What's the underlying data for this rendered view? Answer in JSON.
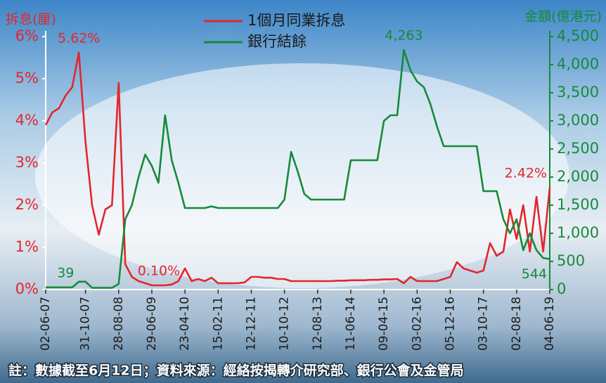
{
  "chart_data": {
    "type": "line",
    "y_label": "拆息(厘)",
    "y2_label": "金額(億港元)",
    "note": "註：數據截至6月12日；資料來源：經絡按揭轉介研究部、銀行公會及金管局",
    "categories": [
      "02-06-07",
      null,
      null,
      null,
      null,
      null,
      "31-10-07",
      null,
      null,
      null,
      null,
      "28-08-08",
      null,
      null,
      null,
      null,
      "29-06-09",
      null,
      null,
      null,
      null,
      "23-04-10",
      null,
      null,
      null,
      null,
      "15-02-11",
      null,
      null,
      null,
      null,
      "12-12-11",
      null,
      null,
      null,
      null,
      "10-10-12",
      null,
      null,
      null,
      null,
      "12-08-13",
      null,
      null,
      null,
      null,
      "11-06-14",
      null,
      null,
      null,
      null,
      "09-04-15",
      null,
      null,
      null,
      null,
      "03-02-16",
      null,
      null,
      null,
      null,
      "05-12-16",
      null,
      null,
      null,
      null,
      "03-10-17",
      null,
      null,
      null,
      null,
      "02-08-18",
      null,
      null,
      null,
      null,
      "04-06-19"
    ],
    "series": [
      {
        "name": "1個月同業拆息",
        "color": "#e3262c",
        "values": [
          3.9,
          4.2,
          4.3,
          4.6,
          4.8,
          5.62,
          3.5,
          2.0,
          1.3,
          1.9,
          2.0,
          4.9,
          0.6,
          0.3,
          0.2,
          0.15,
          0.1,
          0.1,
          0.1,
          0.12,
          0.2,
          0.5,
          0.2,
          0.25,
          0.2,
          0.28,
          0.15,
          0.15,
          0.15,
          0.15,
          0.17,
          0.3,
          0.3,
          0.28,
          0.28,
          0.25,
          0.25,
          0.2,
          0.2,
          0.2,
          0.2,
          0.2,
          0.2,
          0.2,
          0.21,
          0.21,
          0.22,
          0.22,
          0.22,
          0.23,
          0.23,
          0.24,
          0.24,
          0.25,
          0.15,
          0.3,
          0.2,
          0.2,
          0.2,
          0.2,
          0.25,
          0.3,
          0.65,
          0.5,
          0.45,
          0.4,
          0.45,
          1.1,
          0.8,
          0.9,
          1.9,
          1.2,
          2.0,
          0.9,
          2.2,
          0.9,
          2.42
        ],
        "value_labels": [
          null,
          null,
          null,
          null,
          null,
          "5.62%",
          null,
          null,
          null,
          null,
          null,
          null,
          null,
          null,
          null,
          null,
          "0.10%",
          null,
          null,
          null,
          null,
          null,
          null,
          null,
          null,
          null,
          null,
          null,
          null,
          null,
          null,
          null,
          null,
          null,
          null,
          null,
          null,
          null,
          null,
          null,
          null,
          null,
          null,
          null,
          null,
          null,
          null,
          null,
          null,
          null,
          null,
          null,
          null,
          null,
          null,
          null,
          null,
          null,
          null,
          null,
          null,
          null,
          null,
          null,
          null,
          null,
          null,
          null,
          null,
          null,
          null,
          null,
          null,
          null,
          null,
          null,
          "2.42%"
        ]
      },
      {
        "name": "銀行結餘",
        "color": "#168a3a",
        "axis": "y2",
        "values": [
          39,
          39,
          39,
          39,
          39,
          140,
          140,
          30,
          30,
          30,
          30,
          100,
          1250,
          1500,
          2000,
          2400,
          2200,
          1900,
          3100,
          2300,
          1900,
          1450,
          1450,
          1450,
          1450,
          1480,
          1450,
          1450,
          1450,
          1450,
          1450,
          1450,
          1450,
          1450,
          1450,
          1450,
          1600,
          2450,
          2100,
          1700,
          1600,
          1600,
          1600,
          1600,
          1600,
          1600,
          2300,
          2300,
          2300,
          2300,
          2300,
          3000,
          3100,
          3100,
          4263,
          3900,
          3700,
          3600,
          3300,
          2900,
          2550,
          2550,
          2550,
          2550,
          2550,
          2550,
          1750,
          1750,
          1750,
          1250,
          1000,
          1250,
          700,
          1000,
          700,
          560,
          544
        ],
        "value_labels": [
          null,
          null,
          null,
          "39",
          null,
          null,
          null,
          null,
          null,
          null,
          null,
          null,
          null,
          null,
          null,
          null,
          null,
          null,
          null,
          null,
          null,
          null,
          null,
          null,
          null,
          null,
          null,
          null,
          null,
          null,
          null,
          null,
          null,
          null,
          null,
          null,
          null,
          null,
          null,
          null,
          null,
          null,
          null,
          null,
          null,
          null,
          null,
          null,
          null,
          null,
          null,
          null,
          null,
          null,
          "4,263",
          null,
          null,
          null,
          null,
          null,
          null,
          null,
          null,
          null,
          null,
          null,
          null,
          null,
          null,
          null,
          null,
          null,
          null,
          null,
          null,
          null,
          "544"
        ]
      }
    ],
    "ylim": [
      0,
      6
    ],
    "yticks": [
      {
        "value": 0,
        "label": "0%"
      },
      {
        "value": 1,
        "label": "1%"
      },
      {
        "value": 2,
        "label": "2%"
      },
      {
        "value": 3,
        "label": "3%"
      },
      {
        "value": 4,
        "label": "4%"
      },
      {
        "value": 5,
        "label": "5%"
      },
      {
        "value": 6,
        "label": "6%"
      }
    ],
    "y2lim": [
      0,
      4500
    ],
    "y2ticks": [
      0,
      500,
      {
        "value": 1000,
        "label": "1,000"
      },
      {
        "value": 1500,
        "label": "1,500"
      },
      {
        "value": 2000,
        "label": "2,000"
      },
      {
        "value": 2500,
        "label": "2,500"
      },
      {
        "value": 3000,
        "label": "3,000"
      },
      {
        "value": 3500,
        "label": "3,500"
      },
      {
        "value": 4000,
        "label": "4,000"
      },
      {
        "value": 4500,
        "label": "4,500"
      }
    ]
  }
}
